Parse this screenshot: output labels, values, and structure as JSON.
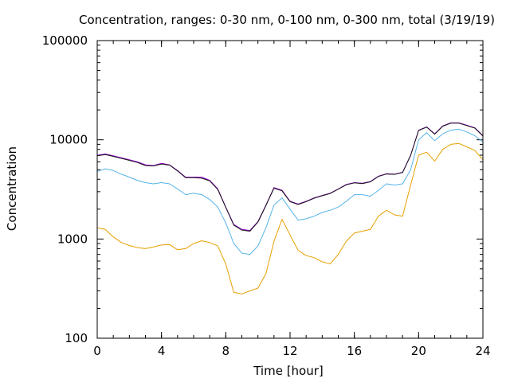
{
  "chart_data": {
    "type": "line",
    "title": "Concentration, ranges: 0-30 nm, 0-100 nm, 0-300 nm, total (3/19/19)",
    "xlabel": "Time [hour]",
    "ylabel": "Concentration",
    "xlim": [
      0,
      24
    ],
    "ylim": [
      100,
      100000
    ],
    "yscale": "log",
    "xticks": [
      "0",
      "4",
      "8",
      "12",
      "16",
      "20",
      "24"
    ],
    "yticks": [
      "100",
      "1000",
      "10000",
      "100000"
    ],
    "grid": false,
    "legend": "none",
    "x": [
      0,
      0.5,
      1,
      1.5,
      2,
      2.5,
      3,
      3.5,
      4,
      4.5,
      5,
      5.5,
      6,
      6.5,
      7,
      7.5,
      8,
      8.5,
      9,
      9.5,
      10,
      10.5,
      11,
      11.5,
      12,
      12.5,
      13,
      13.5,
      14,
      14.5,
      15,
      15.5,
      16,
      16.5,
      17,
      17.5,
      18,
      18.5,
      19,
      19.5,
      20,
      20.5,
      21,
      21.5,
      22,
      22.5,
      23,
      23.5,
      24
    ],
    "series": [
      {
        "color": "#e6a000",
        "values": [
          1300,
          1250,
          1050,
          920,
          860,
          820,
          800,
          830,
          870,
          880,
          780,
          800,
          900,
          960,
          920,
          850,
          560,
          290,
          280,
          300,
          320,
          450,
          950,
          1580,
          1100,
          770,
          680,
          650,
          590,
          560,
          700,
          950,
          1150,
          1200,
          1250,
          1700,
          1950,
          1750,
          1700,
          3500,
          7000,
          7500,
          6100,
          8000,
          9000,
          9200,
          8500,
          7800,
          6300
        ]
      },
      {
        "color": "#56b4e9",
        "values": [
          4800,
          5100,
          4900,
          4500,
          4200,
          3900,
          3700,
          3600,
          3700,
          3600,
          3200,
          2800,
          2900,
          2800,
          2500,
          2100,
          1450,
          900,
          720,
          700,
          850,
          1300,
          2200,
          2600,
          2000,
          1550,
          1600,
          1700,
          1850,
          1950,
          2100,
          2400,
          2800,
          2800,
          2700,
          3100,
          3600,
          3500,
          3600,
          5000,
          10000,
          11800,
          9800,
          11500,
          12500,
          12800,
          12000,
          11000,
          9500
        ]
      },
      {
        "color": "#9400d3",
        "values": [
          7000,
          7200,
          6900,
          6600,
          6300,
          6000,
          5600,
          5500,
          5800,
          5600,
          4900,
          4200,
          4200,
          4200,
          3900,
          3200,
          2100,
          1400,
          1250,
          1220,
          1500,
          2200,
          3300,
          3100,
          2400,
          2250,
          2400,
          2600,
          2750,
          2900,
          3200,
          3550,
          3700,
          3650,
          3800,
          4300,
          4550,
          4500,
          4700,
          7000,
          12500,
          13500,
          11500,
          13800,
          14800,
          14800,
          14000,
          13200,
          11000
        ]
      },
      {
        "color": "#1a1a1a",
        "values": [
          6900,
          7100,
          6800,
          6500,
          6200,
          5900,
          5500,
          5450,
          5700,
          5550,
          4850,
          4150,
          4150,
          4100,
          3850,
          3150,
          2080,
          1380,
          1230,
          1200,
          1480,
          2180,
          3250,
          3060,
          2380,
          2230,
          2380,
          2580,
          2730,
          2880,
          3180,
          3520,
          3680,
          3620,
          3770,
          4270,
          4520,
          4480,
          4680,
          6950,
          12400,
          13400,
          11400,
          13700,
          14700,
          14700,
          13900,
          13100,
          10900
        ]
      }
    ]
  }
}
